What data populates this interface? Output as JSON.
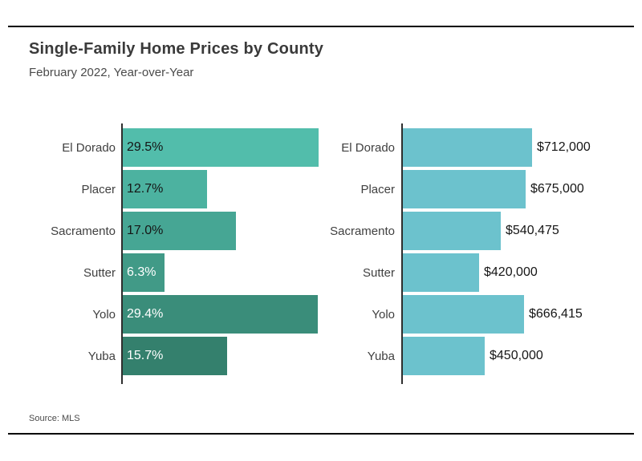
{
  "page": {
    "title": "Single-Family Home Prices by County",
    "subtitle": "February 2022, Year-over-Year",
    "source": "Source: MLS"
  },
  "colors": {
    "rule": "#000000",
    "axis": "#2e2e2e",
    "title_text": "#3a3a3a",
    "subtitle_text": "#4a4a4a",
    "category_text": "#404040",
    "value_text_dark": "#151515",
    "value_text_light": "#ffffff",
    "right_bar": "#6cc2cd"
  },
  "chart_data": [
    {
      "type": "bar",
      "orientation": "horizontal",
      "title": "",
      "legend": "none",
      "grid": false,
      "categories": [
        "El Dorado",
        "Placer",
        "Sacramento",
        "Sutter",
        "Yolo",
        "Yuba"
      ],
      "values": [
        29.5,
        12.7,
        17.0,
        6.3,
        29.4,
        15.7
      ],
      "value_labels": [
        "29.5%",
        "12.7%",
        "17.0%",
        "6.3%",
        "29.4%",
        "15.7%"
      ],
      "value_label_position": "inside-left",
      "bar_colors": [
        "#52bdab",
        "#4cb2a0",
        "#46a694",
        "#419a87",
        "#3a8d7a",
        "#34806d"
      ],
      "value_label_colors": [
        "#151515",
        "#151515",
        "#151515",
        "#ffffff",
        "#ffffff",
        "#ffffff"
      ],
      "xlim": [
        0,
        30
      ]
    },
    {
      "type": "bar",
      "orientation": "horizontal",
      "title": "",
      "legend": "none",
      "grid": false,
      "categories": [
        "El Dorado",
        "Placer",
        "Sacramento",
        "Sutter",
        "Yolo",
        "Yuba"
      ],
      "values": [
        712000,
        675000,
        540475,
        420000,
        666415,
        450000
      ],
      "value_labels": [
        "$712,000",
        "$675,000",
        "$540,475",
        "$420,000",
        "$666,415",
        "$450,000"
      ],
      "value_label_position": "outside-right",
      "bar_colors": [
        "#6cc2cd",
        "#6cc2cd",
        "#6cc2cd",
        "#6cc2cd",
        "#6cc2cd",
        "#6cc2cd"
      ],
      "value_label_colors": [
        "#151515",
        "#151515",
        "#151515",
        "#151515",
        "#151515",
        "#151515"
      ],
      "xlim": [
        0,
        740000
      ]
    }
  ]
}
